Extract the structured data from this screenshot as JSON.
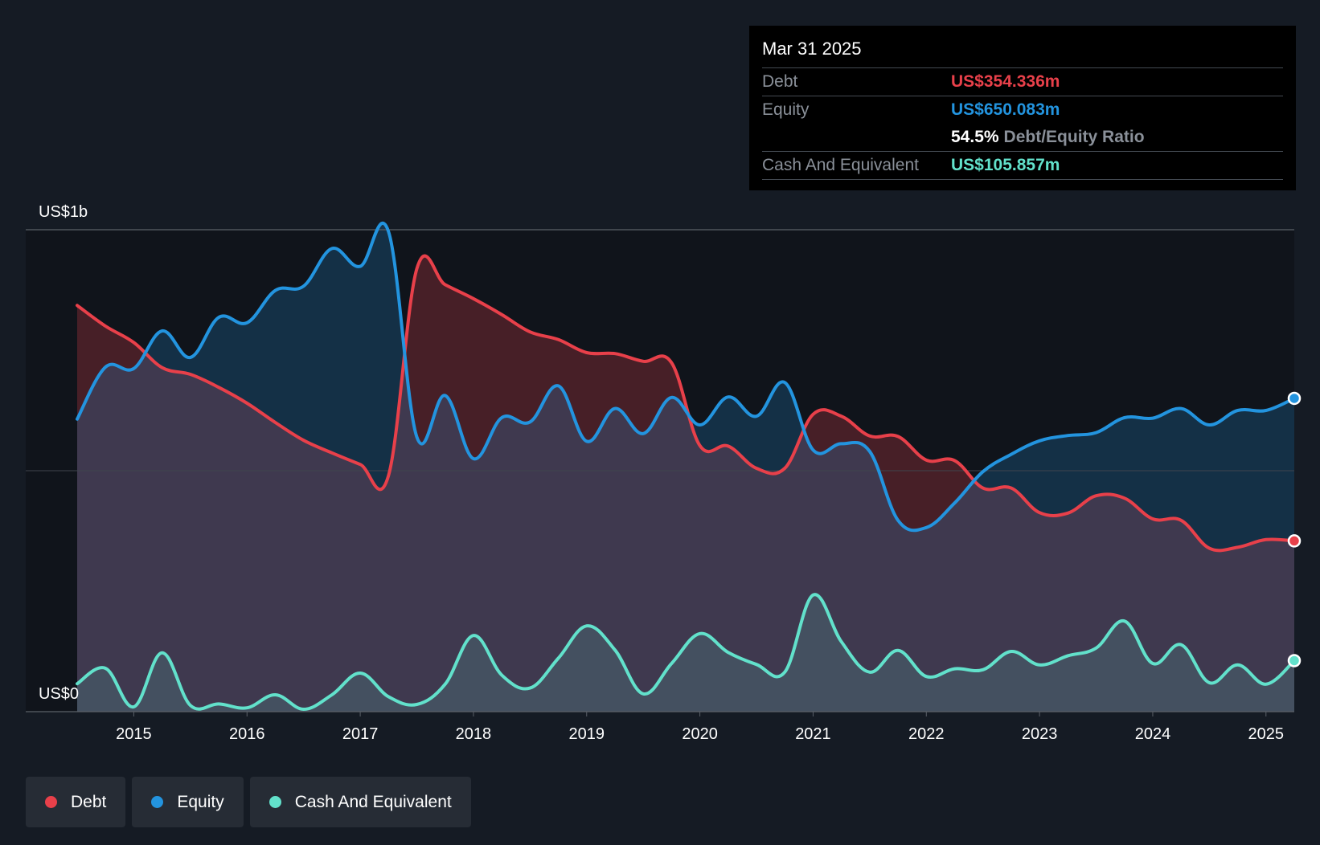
{
  "chart_data": {
    "type": "area",
    "title": "",
    "y_axis": {
      "top_label": "US$1b",
      "bottom_label": "US$0",
      "ylim": [
        0,
        1000
      ]
    },
    "x_ticks": [
      "2015",
      "2016",
      "2017",
      "2018",
      "2019",
      "2020",
      "2021",
      "2022",
      "2023",
      "2024",
      "2025"
    ],
    "x_range": [
      2014.5,
      2025.25
    ],
    "grid": true,
    "legend_position": "bottom-left",
    "series": [
      {
        "name": "Debt",
        "color": "#e8404a",
        "points": [
          [
            2014.5,
            843
          ],
          [
            2014.75,
            800
          ],
          [
            2015.0,
            766
          ],
          [
            2015.25,
            714
          ],
          [
            2015.5,
            700
          ],
          [
            2015.75,
            673
          ],
          [
            2016.0,
            640
          ],
          [
            2016.25,
            600
          ],
          [
            2016.5,
            563
          ],
          [
            2016.75,
            537
          ],
          [
            2017.0,
            513
          ],
          [
            2017.25,
            490
          ],
          [
            2017.5,
            919
          ],
          [
            2017.75,
            886
          ],
          [
            2018.0,
            857
          ],
          [
            2018.25,
            824
          ],
          [
            2018.5,
            788
          ],
          [
            2018.75,
            772
          ],
          [
            2019.0,
            745
          ],
          [
            2019.25,
            743
          ],
          [
            2019.5,
            727
          ],
          [
            2019.75,
            724
          ],
          [
            2020.0,
            552
          ],
          [
            2020.25,
            551
          ],
          [
            2020.5,
            505
          ],
          [
            2020.75,
            505
          ],
          [
            2021.0,
            617
          ],
          [
            2021.25,
            613
          ],
          [
            2021.5,
            572
          ],
          [
            2021.75,
            571
          ],
          [
            2022.0,
            522
          ],
          [
            2022.25,
            521
          ],
          [
            2022.5,
            464
          ],
          [
            2022.75,
            464
          ],
          [
            2023.0,
            413
          ],
          [
            2023.25,
            412
          ],
          [
            2023.5,
            448
          ],
          [
            2023.75,
            443
          ],
          [
            2024.0,
            400
          ],
          [
            2024.25,
            397
          ],
          [
            2024.5,
            339
          ],
          [
            2024.75,
            341
          ],
          [
            2025.0,
            357
          ],
          [
            2025.25,
            354.336
          ]
        ]
      },
      {
        "name": "Equity",
        "color": "#2394df",
        "points": [
          [
            2014.5,
            607
          ],
          [
            2014.75,
            715
          ],
          [
            2015.0,
            712
          ],
          [
            2015.25,
            790
          ],
          [
            2015.5,
            735
          ],
          [
            2015.75,
            818
          ],
          [
            2016.0,
            807
          ],
          [
            2016.25,
            874
          ],
          [
            2016.5,
            883
          ],
          [
            2016.75,
            961
          ],
          [
            2017.0,
            924
          ],
          [
            2017.25,
            996
          ],
          [
            2017.5,
            570
          ],
          [
            2017.75,
            656
          ],
          [
            2018.0,
            525
          ],
          [
            2018.25,
            610
          ],
          [
            2018.5,
            601
          ],
          [
            2018.75,
            676
          ],
          [
            2019.0,
            561
          ],
          [
            2019.25,
            629
          ],
          [
            2019.5,
            577
          ],
          [
            2019.75,
            652
          ],
          [
            2020.0,
            595
          ],
          [
            2020.25,
            653
          ],
          [
            2020.5,
            613
          ],
          [
            2020.75,
            683
          ],
          [
            2021.0,
            543
          ],
          [
            2021.25,
            556
          ],
          [
            2021.5,
            540
          ],
          [
            2021.75,
            397
          ],
          [
            2022.0,
            382
          ],
          [
            2022.25,
            433
          ],
          [
            2022.5,
            498
          ],
          [
            2022.75,
            534
          ],
          [
            2023.0,
            562
          ],
          [
            2023.25,
            573
          ],
          [
            2023.5,
            579
          ],
          [
            2023.75,
            610
          ],
          [
            2024.0,
            609
          ],
          [
            2024.25,
            629
          ],
          [
            2024.5,
            595
          ],
          [
            2024.75,
            625
          ],
          [
            2025.0,
            625
          ],
          [
            2025.25,
            650.083
          ]
        ]
      },
      {
        "name": "Cash And Equivalent",
        "color": "#62e1cb",
        "points": [
          [
            2014.5,
            58
          ],
          [
            2014.75,
            90
          ],
          [
            2015.0,
            10
          ],
          [
            2015.25,
            122
          ],
          [
            2015.5,
            13
          ],
          [
            2015.75,
            16
          ],
          [
            2016.0,
            8
          ],
          [
            2016.25,
            35
          ],
          [
            2016.5,
            5
          ],
          [
            2016.75,
            35
          ],
          [
            2017.0,
            80
          ],
          [
            2017.25,
            31
          ],
          [
            2017.5,
            15
          ],
          [
            2017.75,
            57
          ],
          [
            2018.0,
            158
          ],
          [
            2018.25,
            76
          ],
          [
            2018.5,
            49
          ],
          [
            2018.75,
            111
          ],
          [
            2019.0,
            178
          ],
          [
            2019.25,
            128
          ],
          [
            2019.5,
            37
          ],
          [
            2019.75,
            100
          ],
          [
            2020.0,
            162
          ],
          [
            2020.25,
            123
          ],
          [
            2020.5,
            98
          ],
          [
            2020.75,
            82
          ],
          [
            2021.0,
            242
          ],
          [
            2021.25,
            145
          ],
          [
            2021.5,
            82
          ],
          [
            2021.75,
            127
          ],
          [
            2022.0,
            73
          ],
          [
            2022.25,
            89
          ],
          [
            2022.5,
            87
          ],
          [
            2022.75,
            125
          ],
          [
            2023.0,
            97
          ],
          [
            2023.25,
            116
          ],
          [
            2023.5,
            132
          ],
          [
            2023.75,
            188
          ],
          [
            2024.0,
            100
          ],
          [
            2024.25,
            139
          ],
          [
            2024.5,
            60
          ],
          [
            2024.75,
            97
          ],
          [
            2025.0,
            57
          ],
          [
            2025.25,
            105.857
          ]
        ]
      }
    ]
  },
  "tooltip": {
    "date": "Mar 31 2025",
    "debt_label": "Debt",
    "debt_value": "US$354.336m",
    "equity_label": "Equity",
    "equity_value": "US$650.083m",
    "ratio_value": "54.5%",
    "ratio_label": "Debt/Equity Ratio",
    "cash_label": "Cash And Equivalent",
    "cash_value": "US$105.857m"
  },
  "legend": [
    {
      "label": "Debt",
      "color": "#e8404a"
    },
    {
      "label": "Equity",
      "color": "#2394df"
    },
    {
      "label": "Cash And Equivalent",
      "color": "#62e1cb"
    }
  ]
}
